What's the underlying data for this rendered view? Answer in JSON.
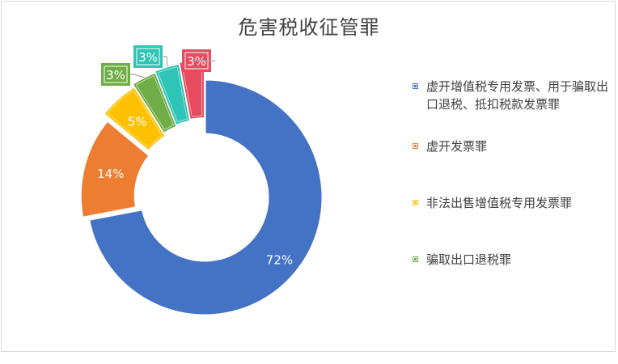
{
  "chart_data": {
    "type": "donut",
    "title": "危害税收征管罪",
    "slices": [
      {
        "label": "虚开增值税专用发票、用于骗取出口退税、抵扣税款发票罪",
        "value": 72,
        "value_label": "72%",
        "color": "#4472C4"
      },
      {
        "label": "虚开发票罪",
        "value": 14,
        "value_label": "14%",
        "color": "#ED7D31"
      },
      {
        "label": "非法出售增值税专用发票罪",
        "value": 5,
        "value_label": "5%",
        "color": "#FFC000"
      },
      {
        "label": "骗取出口退税罪",
        "value": 3,
        "value_label": "3%",
        "color": "#70AD47"
      },
      {
        "label": "",
        "value": 3,
        "value_label": "3%",
        "color": "#2EC4B6"
      },
      {
        "label": "",
        "value": 3,
        "value_label": "3%",
        "color": "#E84A5F"
      }
    ],
    "legend_position": "right"
  }
}
